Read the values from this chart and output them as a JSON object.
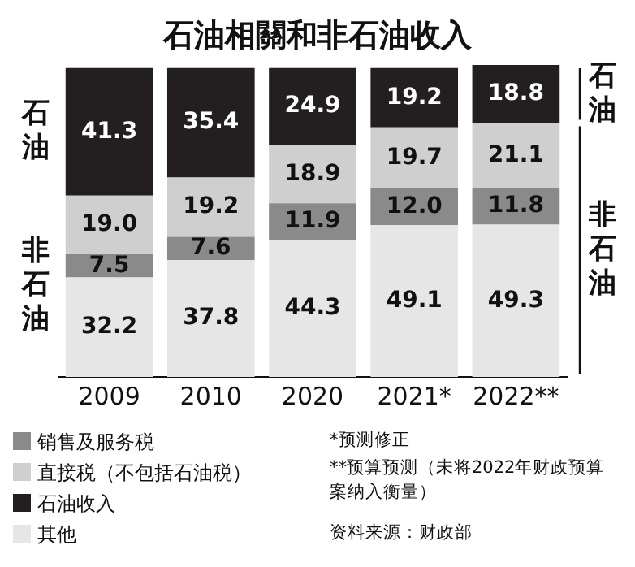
{
  "chart_data": {
    "type": "bar",
    "title": "石油相關和非石油收入",
    "categories": [
      "2009",
      "2010",
      "2020",
      "2021*",
      "2022**"
    ],
    "stacked": true,
    "ylim": [
      0,
      101
    ],
    "tick_labels": "x",
    "grid": false,
    "legend": "bottom left",
    "series": [
      {
        "name": "其他",
        "color": "#e6e6e6",
        "values": [
          32.2,
          37.8,
          44.3,
          49.1,
          49.3
        ],
        "value_labels": [
          "32.2",
          "37.8",
          "44.3",
          "49.1",
          "49.3"
        ]
      },
      {
        "name": "销售及服务税",
        "color": "#8a8a8a",
        "values": [
          7.5,
          7.6,
          11.9,
          12.0,
          11.8
        ],
        "value_labels": [
          "7.5",
          "7.6",
          "11.9",
          "12.0",
          "11.8"
        ]
      },
      {
        "name": "直接税（不包括石油税）",
        "color": "#cfcfcf",
        "values": [
          19.0,
          19.2,
          18.9,
          19.7,
          21.1
        ],
        "value_labels": [
          "19.0",
          "19.2",
          "18.9",
          "19.7",
          "21.1"
        ]
      },
      {
        "name": "石油收入",
        "color": "#231f20",
        "values": [
          41.3,
          35.4,
          24.9,
          19.2,
          18.8
        ],
        "value_labels": [
          "41.3",
          "35.4",
          "24.9",
          "19.2",
          "18.8"
        ]
      }
    ],
    "annotations": [
      "石油",
      "非石油",
      "石油",
      "非石油",
      "*预测修正",
      "**预算预测（未将2022年财政预算案纳入衡量）",
      "资料来源：财政部"
    ]
  }
}
